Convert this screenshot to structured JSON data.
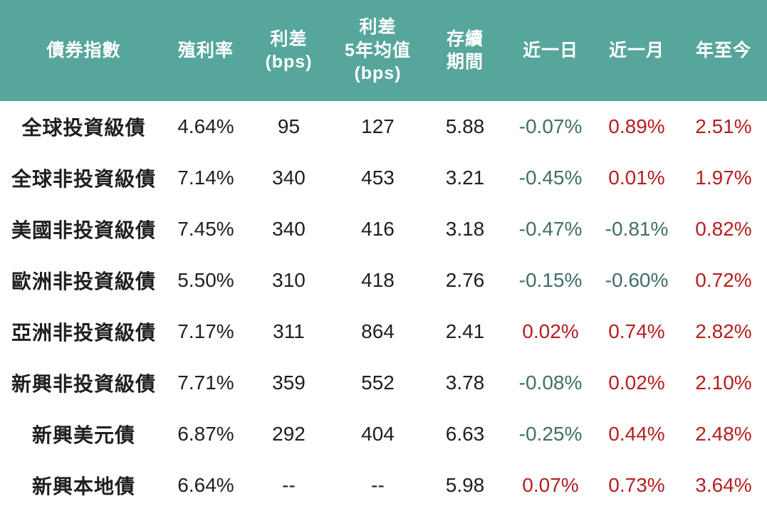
{
  "colors": {
    "header_bg": "#56a69c",
    "header_text": "#ffffff",
    "body_text": "#1f1f1f",
    "positive_change": "#b61e1e",
    "negative_change": "#416e68"
  },
  "table": {
    "columns": [
      {
        "key": "index",
        "label": "債券指數",
        "type": "label"
      },
      {
        "key": "yield",
        "label": "殖利率",
        "type": "value"
      },
      {
        "key": "spread",
        "label": "利差\n(bps)",
        "type": "value"
      },
      {
        "key": "spread_5y_avg",
        "label": "利差\n5年均值\n(bps)",
        "type": "value"
      },
      {
        "key": "duration",
        "label": "存續\n期間",
        "type": "value"
      },
      {
        "key": "chg_1d",
        "label": "近一日",
        "type": "change"
      },
      {
        "key": "chg_1m",
        "label": "近一月",
        "type": "change"
      },
      {
        "key": "chg_ytd",
        "label": "年至今",
        "type": "change"
      }
    ],
    "rows": [
      {
        "index": "全球投資級債",
        "yield": "4.64%",
        "spread": "95",
        "spread_5y_avg": "127",
        "duration": "5.88",
        "chg_1d": "-0.07%",
        "chg_1m": "0.89%",
        "chg_ytd": "2.51%"
      },
      {
        "index": "全球非投資級債",
        "yield": "7.14%",
        "spread": "340",
        "spread_5y_avg": "453",
        "duration": "3.21",
        "chg_1d": "-0.45%",
        "chg_1m": "0.01%",
        "chg_ytd": "1.97%"
      },
      {
        "index": "美國非投資級債",
        "yield": "7.45%",
        "spread": "340",
        "spread_5y_avg": "416",
        "duration": "3.18",
        "chg_1d": "-0.47%",
        "chg_1m": "-0.81%",
        "chg_ytd": "0.82%"
      },
      {
        "index": "歐洲非投資級債",
        "yield": "5.50%",
        "spread": "310",
        "spread_5y_avg": "418",
        "duration": "2.76",
        "chg_1d": "-0.15%",
        "chg_1m": "-0.60%",
        "chg_ytd": "0.72%"
      },
      {
        "index": "亞洲非投資級債",
        "yield": "7.17%",
        "spread": "311",
        "spread_5y_avg": "864",
        "duration": "2.41",
        "chg_1d": "0.02%",
        "chg_1m": "0.74%",
        "chg_ytd": "2.82%"
      },
      {
        "index": "新興非投資級債",
        "yield": "7.71%",
        "spread": "359",
        "spread_5y_avg": "552",
        "duration": "3.78",
        "chg_1d": "-0.08%",
        "chg_1m": "0.02%",
        "chg_ytd": "2.10%"
      },
      {
        "index": "新興美元債",
        "yield": "6.87%",
        "spread": "292",
        "spread_5y_avg": "404",
        "duration": "6.63",
        "chg_1d": "-0.25%",
        "chg_1m": "0.44%",
        "chg_ytd": "2.48%"
      },
      {
        "index": "新興本地債",
        "yield": "6.64%",
        "spread": "--",
        "spread_5y_avg": "--",
        "duration": "5.98",
        "chg_1d": "0.07%",
        "chg_1m": "0.73%",
        "chg_ytd": "3.64%"
      }
    ]
  }
}
